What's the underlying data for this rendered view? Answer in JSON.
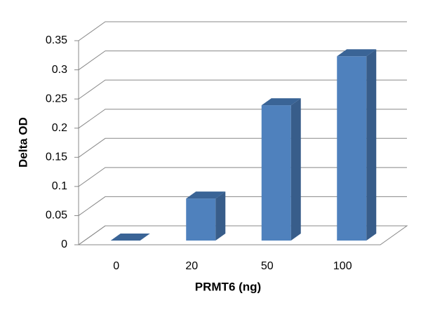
{
  "chart_data": {
    "type": "bar3d",
    "y_label": "Delta OD",
    "x_label": "PRMT6 (ng)",
    "categories": [
      "0",
      "20",
      "50",
      "100"
    ],
    "values": [
      0,
      0.072,
      0.232,
      0.316
    ],
    "color": "#4f81bd",
    "ylim": [
      0,
      0.35
    ],
    "yticks": [
      0,
      0.05,
      0.1,
      0.15,
      0.2,
      0.25,
      0.3,
      0.35
    ],
    "grid": true
  }
}
